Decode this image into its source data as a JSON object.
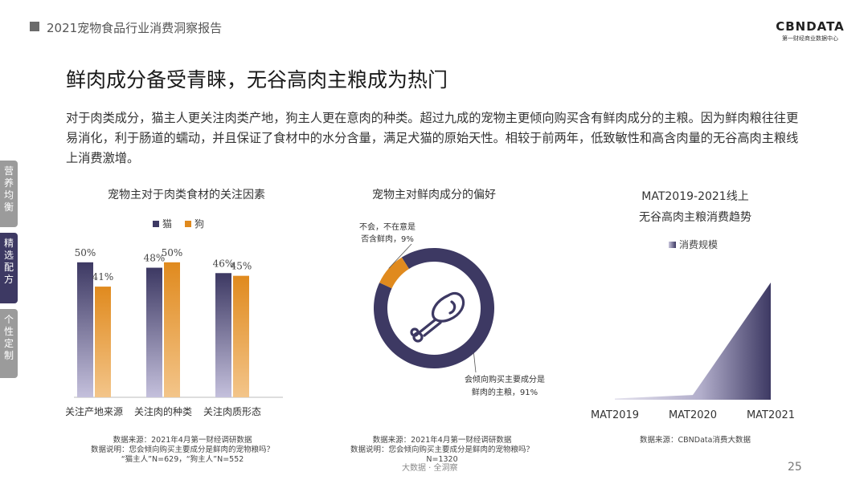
{
  "header": {
    "report_title": "2021宠物食品行业消费洞察报告",
    "logo_main": "CBNDATA",
    "logo_sub": "第一财经商业数据中心"
  },
  "page_title": "鲜肉成分备受青睐，无谷高肉主粮成为热门",
  "intro": "对于肉类成分，猫主人更关注肉类产地，狗主人更在意肉的种类。超过九成的宠物主更倾向购买含有鲜肉成分的主粮。因为鲜肉粮往往更易消化，利于肠道的蠕动，并且保证了食材中的水分含量，满足犬猫的原始天性。相较于前两年，低致敏性和高含肉量的无谷高肉主粮线上消费激增。",
  "side_tabs": [
    {
      "label": "营养均衡",
      "chars": [
        "营",
        "养",
        "均",
        "衡"
      ]
    },
    {
      "label": "精选配方",
      "chars": [
        "精",
        "选",
        "配",
        "方"
      ]
    },
    {
      "label": "个性定制",
      "chars": [
        "个",
        "性",
        "定",
        "制"
      ]
    }
  ],
  "colors": {
    "cat": "#3d3963",
    "dog": "#e08a1e",
    "donut_main": "#3d3963",
    "donut_minor": "#e08a1e"
  },
  "chart_data": [
    {
      "type": "bar",
      "title": "宠物主对于肉类食材的关注因素",
      "categories": [
        "关注产地来源",
        "关注肉的种类",
        "关注肉质形态"
      ],
      "series": [
        {
          "name": "猫",
          "values": [
            50,
            48,
            46
          ],
          "labels": [
            "50%",
            "48%",
            "46%"
          ]
        },
        {
          "name": "狗",
          "values": [
            41,
            50,
            45
          ],
          "labels": [
            "41%",
            "50%",
            "45%"
          ]
        }
      ],
      "ylim": [
        0,
        55
      ],
      "legend": "top-center",
      "source": "数据来源：2021年4月第一财经调研数据",
      "note": "数据说明：您会倾向购买主要成分是鲜肉的宠物粮吗？",
      "sample": "“猫主人”N=629，“狗主人”N=552"
    },
    {
      "type": "pie",
      "title": "宠物主对鲜肉成分的偏好",
      "slices": [
        {
          "label": "会倾向购买主要成分是鲜肉的主粮，91%",
          "value": 91
        },
        {
          "label": "不会，不在意是否含鲜肉，9%",
          "value": 9
        }
      ],
      "slice_label_lines": [
        [
          "会倾向购买主要成分是",
          "鲜肉的主粮，91%"
        ],
        [
          "不会，不在意是",
          "否含鲜肉，9%"
        ]
      ],
      "source": "数据来源：2021年4月第一财经调研数据",
      "note": "数据说明：您会倾向购买主要成分是鲜肉的宠物粮吗？",
      "sample": "N=1320"
    },
    {
      "type": "area",
      "title_lines": [
        "MAT2019-2021线上",
        "无谷高肉主粮消费趋势"
      ],
      "x": [
        "MAT2019",
        "MAT2020",
        "MAT2021"
      ],
      "series": [
        {
          "name": "消费规模",
          "values": [
            1,
            4,
            100
          ]
        }
      ],
      "ylim": [
        0,
        100
      ],
      "legend": "top-center",
      "source": "数据来源：CBNData消费大数据"
    }
  ],
  "footer": {
    "slogan": "大数据 · 全洞察",
    "page_number": "25"
  }
}
